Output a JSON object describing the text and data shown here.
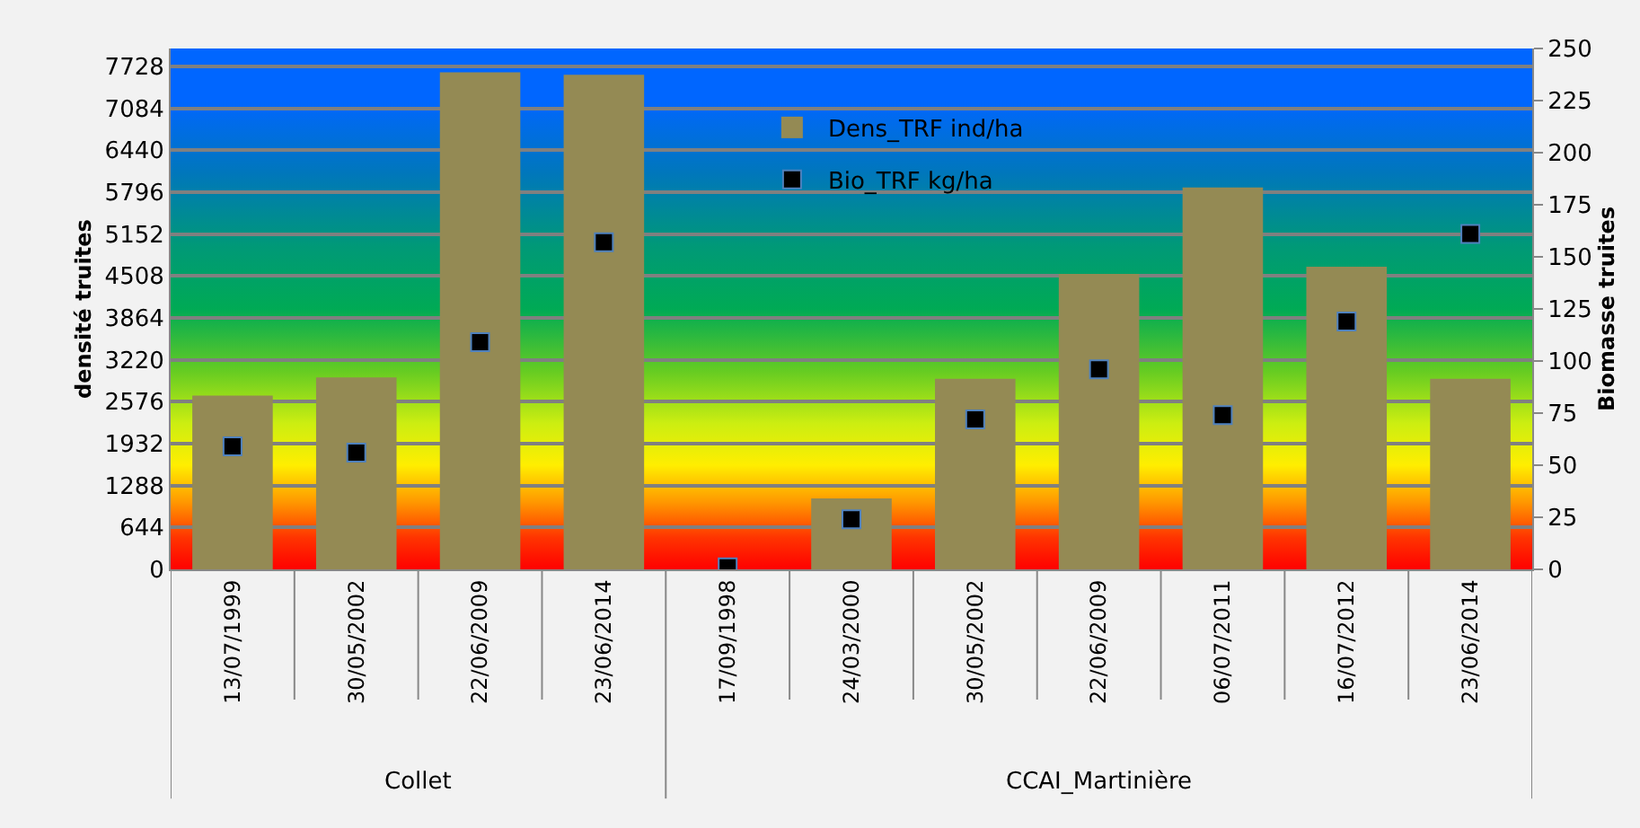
{
  "chart_data": {
    "type": "bar",
    "categories": [
      "13/07/1999",
      "30/05/2002",
      "22/06/2009",
      "23/06/2014",
      "17/09/1998",
      "24/03/2000",
      "30/05/2002",
      "22/06/2009",
      "06/07/2011",
      "16/07/2012",
      "23/06/2014"
    ],
    "series": [
      {
        "name": "Dens_TRF ind/ha",
        "color": "#948a54",
        "values": [
          2670,
          2950,
          7640,
          7600,
          0,
          1090,
          2930,
          4540,
          5870,
          4650,
          2930
        ]
      },
      {
        "name": "Bio_TRF kg/ha",
        "type": "scatter",
        "axis": "y2",
        "color": "#000000",
        "values": [
          59,
          56,
          109,
          157,
          1,
          24,
          72,
          96,
          74,
          119,
          161
        ]
      }
    ],
    "annotations": [
      "Collet",
      "CCAI_Martinière"
    ],
    "ylabel": "densité truites",
    "y2label": "Biomasse truites",
    "ylim": [
      0,
      8004
    ],
    "yticks": [
      0,
      644,
      1288,
      1932,
      2576,
      3220,
      3864,
      4508,
      5152,
      5796,
      6440,
      7084,
      7728
    ],
    "y2lim": [
      0,
      250
    ],
    "y2ticks": [
      0,
      25,
      50,
      75,
      100,
      125,
      150,
      175,
      200,
      225,
      250
    ],
    "grid": "y",
    "legend": "top",
    "marker": "square"
  }
}
